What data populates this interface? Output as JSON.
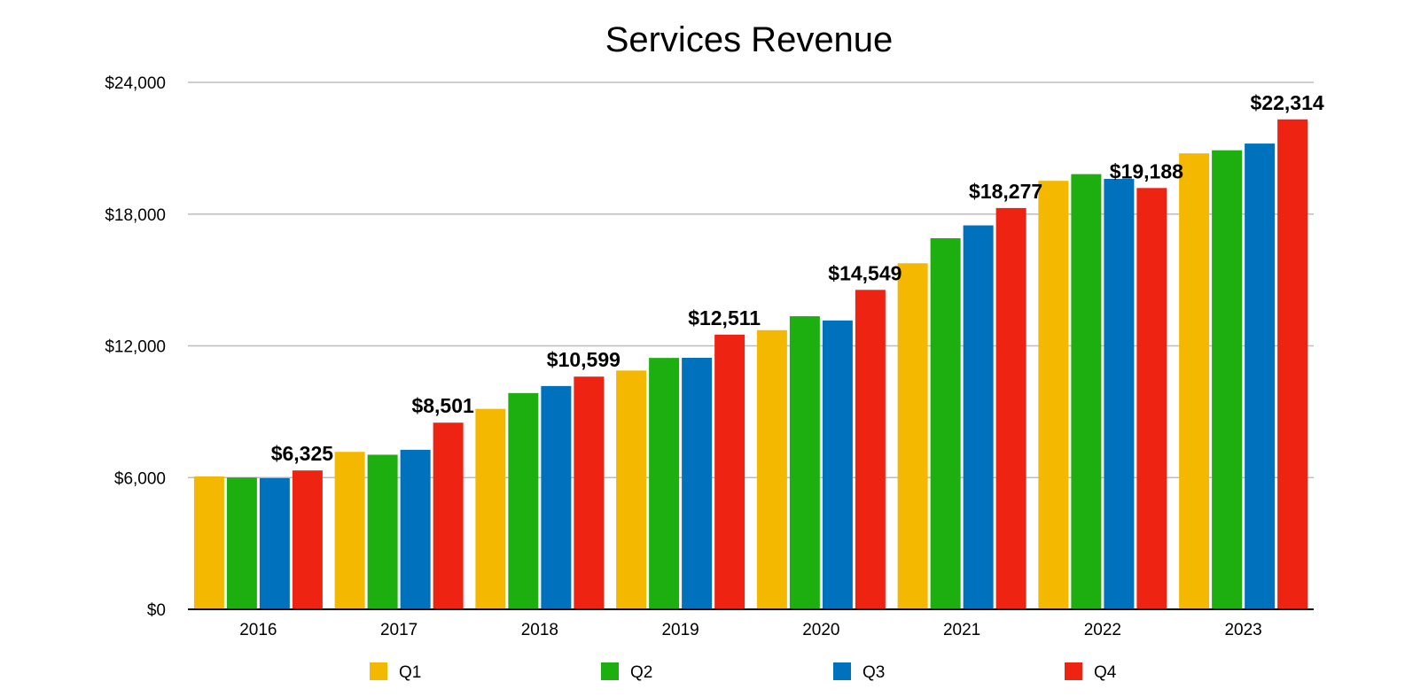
{
  "chart_data": {
    "type": "bar",
    "title": "Services Revenue",
    "xlabel": "",
    "ylabel": "",
    "ylim": [
      0,
      24000
    ],
    "yticks": [
      0,
      6000,
      12000,
      18000,
      24000
    ],
    "ytick_labels": [
      "$0",
      "$6,000",
      "$12,000",
      "$18,000",
      "$24,000"
    ],
    "grid": true,
    "legend_position": "bottom",
    "categories": [
      "2016",
      "2017",
      "2018",
      "2019",
      "2020",
      "2021",
      "2022",
      "2023"
    ],
    "series": [
      {
        "name": "Q1",
        "color": "#F5B800",
        "values": [
          6050,
          7172,
          9129,
          10875,
          12715,
          15761,
          19516,
          20766
        ]
      },
      {
        "name": "Q2",
        "color": "#1DAE0F",
        "values": [
          6001,
          7041,
          9850,
          11450,
          13348,
          16901,
          19821,
          20907
        ]
      },
      {
        "name": "Q3",
        "color": "#0071BC",
        "values": [
          5976,
          7266,
          10170,
          11455,
          13156,
          17486,
          19604,
          21213
        ]
      },
      {
        "name": "Q4",
        "color": "#EE2312",
        "values": [
          6325,
          8501,
          10599,
          12511,
          14549,
          18277,
          19188,
          22314
        ]
      }
    ],
    "data_labels": [
      "$6,325",
      "$8,501",
      "$10,599",
      "$12,511",
      "$14,549",
      "$18,277",
      "$19,188",
      "$22,314"
    ]
  }
}
